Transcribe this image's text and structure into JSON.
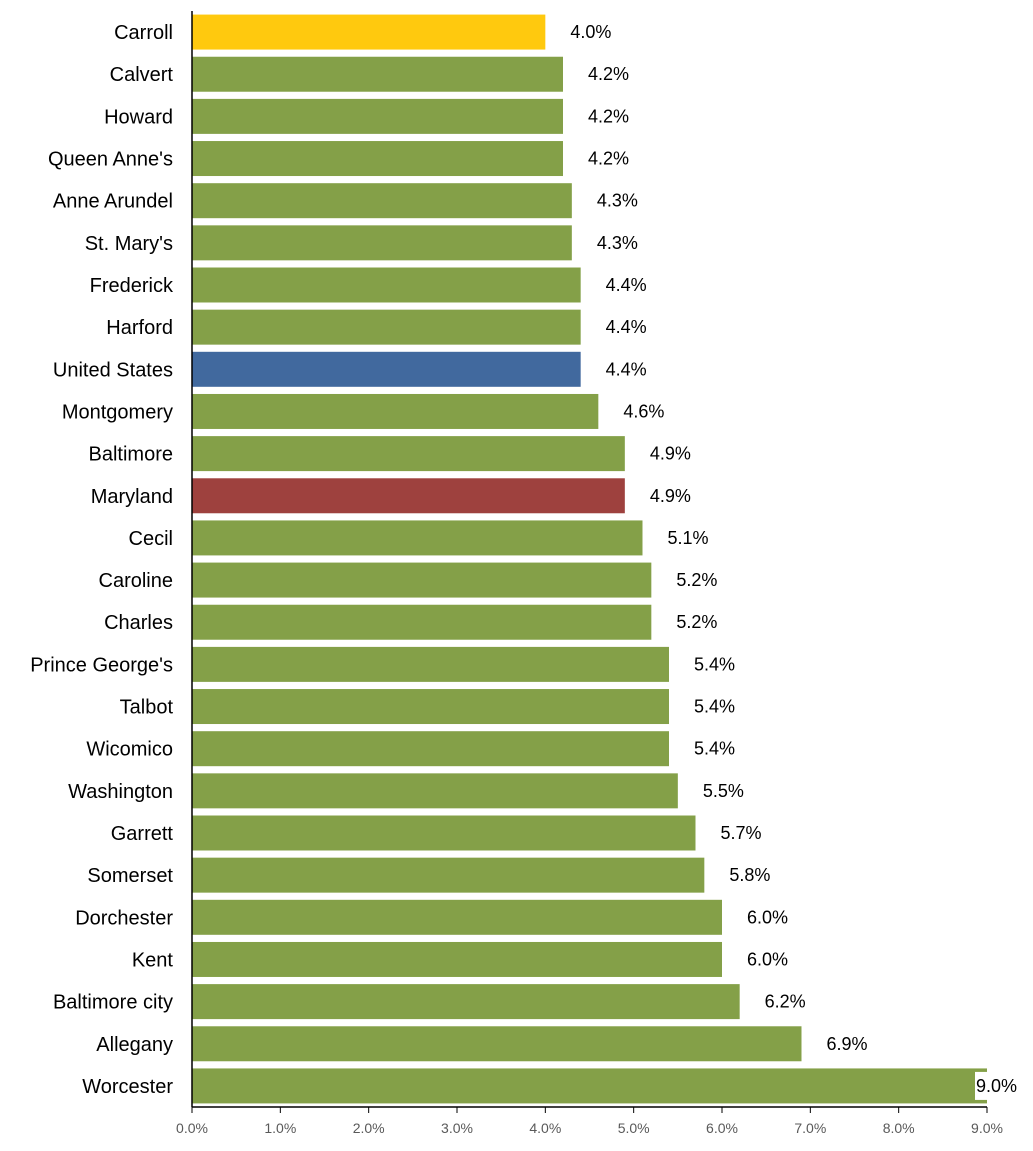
{
  "chart_data": {
    "type": "bar",
    "orientation": "horizontal",
    "title": "",
    "xlabel": "",
    "ylabel": "",
    "xlim": [
      0,
      9
    ],
    "x_ticks": [
      "0.0%",
      "1.0%",
      "2.0%",
      "3.0%",
      "4.0%",
      "5.0%",
      "6.0%",
      "7.0%",
      "8.0%",
      "9.0%"
    ],
    "grid": false,
    "legend": "none",
    "categories": [
      "Carroll",
      "Calvert",
      "Howard",
      "Queen Anne's",
      "Anne Arundel",
      "St. Mary's",
      "Frederick",
      "Harford",
      "United States",
      "Montgomery",
      "Baltimore",
      "Maryland",
      "Cecil",
      "Caroline",
      "Charles",
      "Prince George's",
      "Talbot",
      "Wicomico",
      "Washington",
      "Garrett",
      "Somerset",
      "Dorchester",
      "Kent",
      "Baltimore city",
      "Allegany",
      "Worcester"
    ],
    "values": [
      4.0,
      4.2,
      4.2,
      4.2,
      4.3,
      4.3,
      4.4,
      4.4,
      4.4,
      4.6,
      4.9,
      4.9,
      5.1,
      5.2,
      5.2,
      5.4,
      5.4,
      5.4,
      5.5,
      5.7,
      5.8,
      6.0,
      6.0,
      6.2,
      6.9,
      9.0
    ],
    "value_labels": [
      "4.0%",
      "4.2%",
      "4.2%",
      "4.2%",
      "4.3%",
      "4.3%",
      "4.4%",
      "4.4%",
      "4.4%",
      "4.6%",
      "4.9%",
      "4.9%",
      "5.1%",
      "5.2%",
      "5.2%",
      "5.4%",
      "5.4%",
      "5.4%",
      "5.5%",
      "5.7%",
      "5.8%",
      "6.0%",
      "6.0%",
      "6.2%",
      "6.9%",
      "9.0%"
    ],
    "colors": {
      "default": "#84a048",
      "Carroll": "#ffc90e",
      "United States": "#41699e",
      "Maryland": "#9e413e"
    }
  }
}
